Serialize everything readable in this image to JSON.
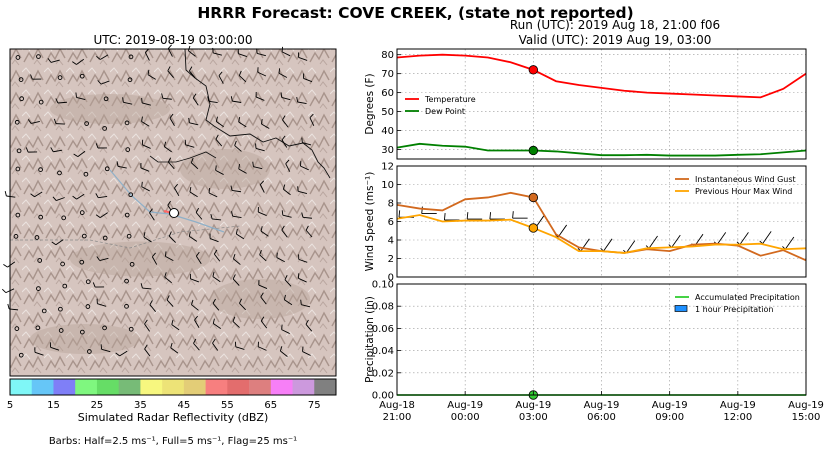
{
  "header": {
    "title": "HRRR Forecast: COVE CREEK, (state not reported)",
    "run_line": "Run (UTC): 2019 Aug 18, 21:00 f06",
    "valid_line": "Valid (UTC): 2019 Aug 19, 03:00"
  },
  "map": {
    "title": "UTC: 2019-08-19 03:00:00",
    "colorbar": {
      "label": "Simulated Radar Reflectivity (dBZ)",
      "ticks": [
        "5",
        "15",
        "25",
        "35",
        "45",
        "55",
        "65",
        "75"
      ],
      "colors": [
        "#7ff7f7",
        "#66c6f7",
        "#7f7ff7",
        "#7ff77f",
        "#66dd66",
        "#77bb77",
        "#f7f77f",
        "#ede377",
        "#e3cd77",
        "#f77f7f",
        "#e36d6d",
        "#dd7f7f",
        "#f77ff7",
        "#cc99dd",
        "#808080"
      ]
    },
    "barbs_note": "Barbs: Half=2.5 ms⁻¹, Full=5 ms⁻¹, Flag=25 ms⁻¹"
  },
  "chart_data": [
    {
      "type": "line",
      "ylabel": "Degrees (F)",
      "ylim": [
        25,
        83
      ],
      "yticks": [
        30,
        40,
        50,
        60,
        70,
        80
      ],
      "x_hours": [
        0,
        1,
        2,
        3,
        4,
        5,
        6,
        7,
        8,
        9,
        10,
        11,
        12,
        13,
        14,
        15,
        16,
        17,
        18
      ],
      "series": [
        {
          "name": "Temperature",
          "color": "#ff0000",
          "values": [
            78.5,
            79.5,
            80,
            79.5,
            78.5,
            76,
            72,
            66,
            64,
            62.5,
            61,
            60,
            59.5,
            59,
            58.5,
            58,
            57.5,
            62,
            70
          ]
        },
        {
          "name": "Dew Point",
          "color": "#008000",
          "values": [
            31,
            33,
            32,
            31.5,
            29.5,
            29.5,
            29.5,
            29,
            28,
            27,
            27,
            27.2,
            26.8,
            26.8,
            26.8,
            27.2,
            27.5,
            28.5,
            29.5
          ]
        }
      ],
      "marker_x": 6,
      "grid": true,
      "legend": "center-left"
    },
    {
      "type": "line",
      "ylabel": "Wind Speed (ms⁻¹)",
      "ylim": [
        0,
        12
      ],
      "yticks": [
        0,
        2,
        4,
        6,
        8,
        10,
        12
      ],
      "x_hours": [
        0,
        1,
        2,
        3,
        4,
        5,
        6,
        7,
        8,
        9,
        10,
        11,
        12,
        13,
        14,
        15,
        16,
        17,
        18
      ],
      "series": [
        {
          "name": "Instantaneous Wind Gust",
          "color": "#d2691e",
          "values": [
            7.8,
            7.4,
            7.2,
            8.4,
            8.6,
            9.1,
            8.6,
            4.6,
            3.2,
            2.8,
            2.6,
            3.0,
            2.8,
            3.5,
            3.6,
            3.4,
            2.3,
            2.9,
            1.8
          ]
        },
        {
          "name": "Previous Hour Max Wind",
          "color": "#ffa500",
          "values": [
            6.3,
            6.7,
            6.0,
            6.1,
            6.1,
            6.2,
            5.3,
            4.3,
            2.8,
            2.8,
            2.6,
            3.1,
            3.2,
            3.3,
            3.5,
            3.5,
            3.6,
            3.0,
            3.1
          ]
        }
      ],
      "marker_x": 6,
      "grid": true,
      "legend": "upper-right"
    },
    {
      "type": "line",
      "ylabel": "Precipitation (in)",
      "ylim": [
        0,
        0.1
      ],
      "yticks": [
        0.0,
        0.02,
        0.04,
        0.06,
        0.08,
        0.1
      ],
      "ytick_labels": [
        "0.00",
        "0.02",
        "0.04",
        "0.06",
        "0.08",
        "0.10"
      ],
      "x_hours": [
        0,
        1,
        2,
        3,
        4,
        5,
        6,
        7,
        8,
        9,
        10,
        11,
        12,
        13,
        14,
        15,
        16,
        17,
        18
      ],
      "series": [
        {
          "name": "Accumulated Precipitation",
          "color": "#32cd32",
          "values": [
            0,
            0,
            0,
            0,
            0,
            0,
            0,
            0,
            0,
            0,
            0,
            0,
            0,
            0,
            0,
            0,
            0,
            0,
            0
          ]
        },
        {
          "name": "1 hour Precipitation",
          "color": "#1e90ff",
          "values": [
            0,
            0,
            0,
            0,
            0,
            0,
            0,
            0,
            0,
            0,
            0,
            0,
            0,
            0,
            0,
            0,
            0,
            0,
            0
          ]
        }
      ],
      "marker_x": 6,
      "grid": true,
      "legend": "upper-right",
      "xtick_labels": [
        [
          "Aug-18",
          "21:00"
        ],
        [
          "Aug-19",
          "00:00"
        ],
        [
          "Aug-19",
          "03:00"
        ],
        [
          "Aug-19",
          "06:00"
        ],
        [
          "Aug-19",
          "09:00"
        ],
        [
          "Aug-19",
          "12:00"
        ],
        [
          "Aug-19",
          "15:00"
        ]
      ],
      "xtick_hours": [
        0,
        3,
        6,
        9,
        12,
        15,
        18
      ]
    }
  ]
}
